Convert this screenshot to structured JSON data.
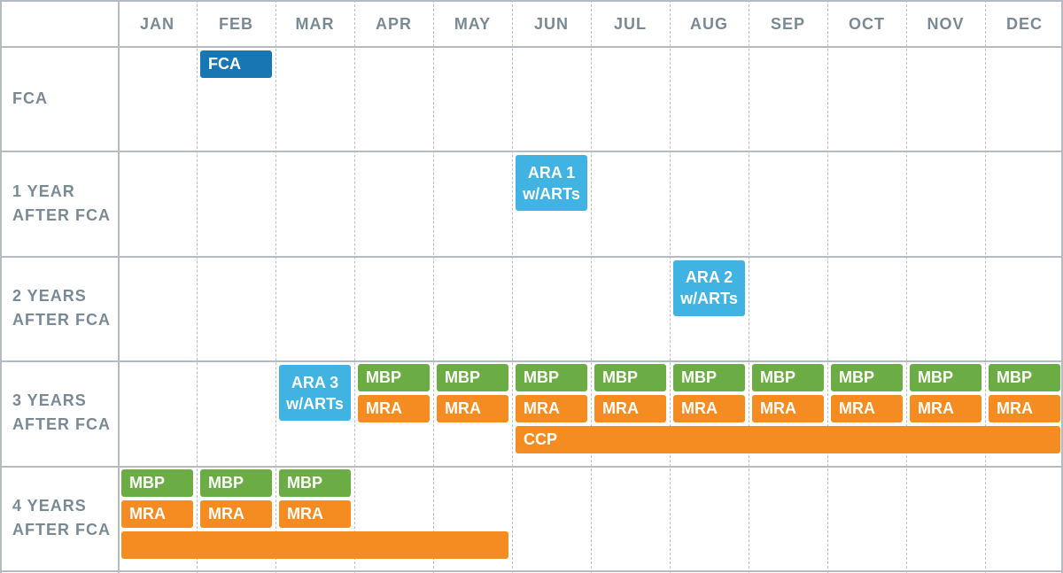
{
  "colors": {
    "fca": "#1877b2",
    "ara": "#41b3e3",
    "mbp": "#6cac44",
    "mra": "#f58c22",
    "grid": "#b5bcc1",
    "label": "#7a8a94"
  },
  "months": [
    "JAN",
    "FEB",
    "MAR",
    "APR",
    "MAY",
    "JUN",
    "JUL",
    "AUG",
    "SEP",
    "OCT",
    "NOV",
    "DEC"
  ],
  "rows": [
    {
      "line1": "FCA",
      "line2": ""
    },
    {
      "line1": "1 YEAR",
      "line2": "AFTER FCA"
    },
    {
      "line1": "2 YEARS",
      "line2": "AFTER FCA"
    },
    {
      "line1": "3 YEARS",
      "line2": "AFTER FCA"
    },
    {
      "line1": "4 YEARS",
      "line2": "AFTER FCA"
    }
  ],
  "bars": [
    {
      "row": 0,
      "lane": "top",
      "start": 1,
      "end": 1,
      "type": "fca",
      "label": "FCA"
    },
    {
      "row": 1,
      "lane": "tall",
      "start": 5,
      "end": 5,
      "type": "ara",
      "label": "ARA 1 w/ARTs"
    },
    {
      "row": 2,
      "lane": "tall",
      "start": 7,
      "end": 7,
      "type": "ara",
      "label": "ARA 2 w/ARTs"
    },
    {
      "row": 3,
      "lane": "tall",
      "start": 2,
      "end": 2,
      "type": "ara",
      "label": "ARA 3 w/ARTs"
    },
    {
      "row": 3,
      "lane": "mbp",
      "start": 3,
      "end": 3,
      "type": "mbp",
      "label": "MBP"
    },
    {
      "row": 3,
      "lane": "mbp",
      "start": 4,
      "end": 4,
      "type": "mbp",
      "label": "MBP"
    },
    {
      "row": 3,
      "lane": "mbp",
      "start": 5,
      "end": 5,
      "type": "mbp",
      "label": "MBP"
    },
    {
      "row": 3,
      "lane": "mbp",
      "start": 6,
      "end": 6,
      "type": "mbp",
      "label": "MBP"
    },
    {
      "row": 3,
      "lane": "mbp",
      "start": 7,
      "end": 7,
      "type": "mbp",
      "label": "MBP"
    },
    {
      "row": 3,
      "lane": "mbp",
      "start": 8,
      "end": 8,
      "type": "mbp",
      "label": "MBP"
    },
    {
      "row": 3,
      "lane": "mbp",
      "start": 9,
      "end": 9,
      "type": "mbp",
      "label": "MBP"
    },
    {
      "row": 3,
      "lane": "mbp",
      "start": 10,
      "end": 10,
      "type": "mbp",
      "label": "MBP"
    },
    {
      "row": 3,
      "lane": "mbp",
      "start": 11,
      "end": 11,
      "type": "mbp",
      "label": "MBP"
    },
    {
      "row": 3,
      "lane": "mra",
      "start": 3,
      "end": 3,
      "type": "mra",
      "label": "MRA"
    },
    {
      "row": 3,
      "lane": "mra",
      "start": 4,
      "end": 4,
      "type": "mra",
      "label": "MRA"
    },
    {
      "row": 3,
      "lane": "mra",
      "start": 5,
      "end": 5,
      "type": "mra",
      "label": "MRA"
    },
    {
      "row": 3,
      "lane": "mra",
      "start": 6,
      "end": 6,
      "type": "mra",
      "label": "MRA"
    },
    {
      "row": 3,
      "lane": "mra",
      "start": 7,
      "end": 7,
      "type": "mra",
      "label": "MRA"
    },
    {
      "row": 3,
      "lane": "mra",
      "start": 8,
      "end": 8,
      "type": "mra",
      "label": "MRA"
    },
    {
      "row": 3,
      "lane": "mra",
      "start": 9,
      "end": 9,
      "type": "mra",
      "label": "MRA"
    },
    {
      "row": 3,
      "lane": "mra",
      "start": 10,
      "end": 10,
      "type": "mra",
      "label": "MRA"
    },
    {
      "row": 3,
      "lane": "mra",
      "start": 11,
      "end": 11,
      "type": "mra",
      "label": "MRA"
    },
    {
      "row": 3,
      "lane": "ccp",
      "start": 5,
      "end": 11,
      "type": "mra",
      "label": "CCP"
    },
    {
      "row": 4,
      "lane": "mbp",
      "start": 0,
      "end": 0,
      "type": "mbp",
      "label": "MBP"
    },
    {
      "row": 4,
      "lane": "mbp",
      "start": 1,
      "end": 1,
      "type": "mbp",
      "label": "MBP"
    },
    {
      "row": 4,
      "lane": "mbp",
      "start": 2,
      "end": 2,
      "type": "mbp",
      "label": "MBP"
    },
    {
      "row": 4,
      "lane": "mra",
      "start": 0,
      "end": 0,
      "type": "mra",
      "label": "MRA"
    },
    {
      "row": 4,
      "lane": "mra",
      "start": 1,
      "end": 1,
      "type": "mra",
      "label": "MRA"
    },
    {
      "row": 4,
      "lane": "mra",
      "start": 2,
      "end": 2,
      "type": "mra",
      "label": "MRA"
    },
    {
      "row": 4,
      "lane": "ccp",
      "start": 0,
      "end": 4,
      "type": "mra",
      "label": ""
    }
  ]
}
